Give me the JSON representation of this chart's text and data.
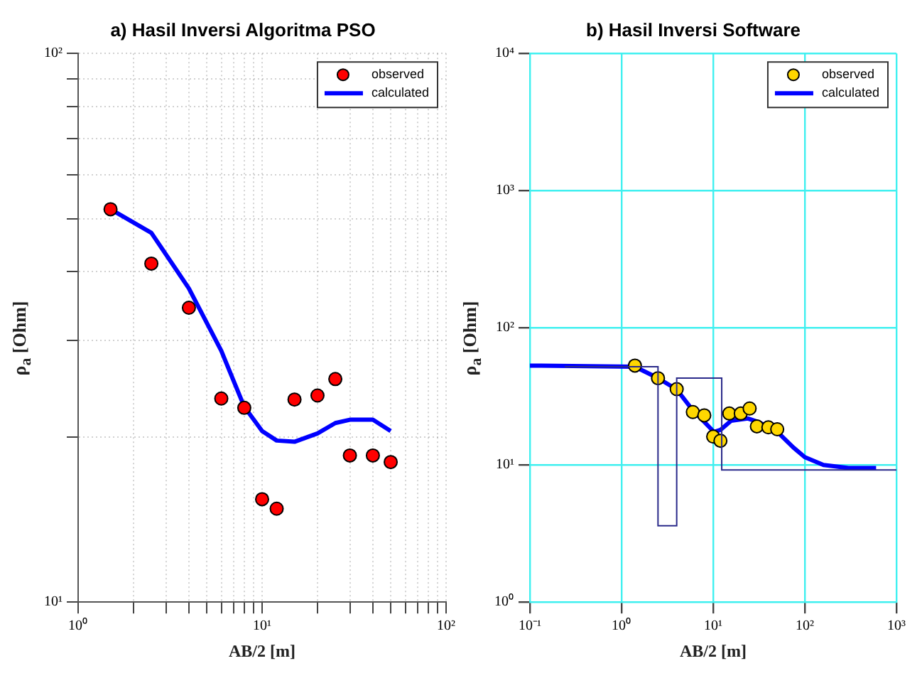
{
  "chart_data": [
    {
      "type": "scatter",
      "title": "a) Hasil Inversi Algoritma PSO",
      "xlabel": "AB/2 [m]",
      "ylabel": "ρ$_{a}$ [Ohm]",
      "log": "xy",
      "grid": true,
      "legend": "top right",
      "xlim": [
        1,
        100
      ],
      "xticks": [
        {
          "value": 1,
          "label": "10⁰"
        },
        {
          "value": 2,
          "label": null
        },
        {
          "value": 3,
          "label": null
        },
        {
          "value": 4,
          "label": null
        },
        {
          "value": 5,
          "label": null
        },
        {
          "value": 6,
          "label": null
        },
        {
          "value": 7,
          "label": null
        },
        {
          "value": 8,
          "label": null
        },
        {
          "value": 9,
          "label": null
        },
        {
          "value": 10,
          "label": "10¹"
        },
        {
          "value": 20,
          "label": null
        },
        {
          "value": 30,
          "label": null
        },
        {
          "value": 40,
          "label": null
        },
        {
          "value": 50,
          "label": null
        },
        {
          "value": 60,
          "label": null
        },
        {
          "value": 70,
          "label": null
        },
        {
          "value": 80,
          "label": null
        },
        {
          "value": 90,
          "label": null
        },
        {
          "value": 100,
          "label": "10²"
        }
      ],
      "ylim": [
        10,
        100
      ],
      "yticks": [
        {
          "value": 10,
          "label": "10¹"
        },
        {
          "value": 20,
          "label": null
        },
        {
          "value": 30,
          "label": null
        },
        {
          "value": 40,
          "label": null
        },
        {
          "value": 50,
          "label": null
        },
        {
          "value": 60,
          "label": null
        },
        {
          "value": 70,
          "label": null
        },
        {
          "value": 80,
          "label": null
        },
        {
          "value": 90,
          "label": null
        },
        {
          "value": 100,
          "label": "10²"
        }
      ],
      "series": [
        {
          "name": "observed",
          "type": "scatter",
          "marker": "circle",
          "color": "#ff0000",
          "x": [
            1.5,
            2.5,
            4,
            6,
            8,
            10,
            12,
            15,
            20,
            25,
            30,
            40,
            50
          ],
          "values": [
            52,
            41.4,
            34.4,
            23.5,
            22.6,
            15.4,
            14.8,
            23.4,
            23.8,
            25.5,
            18.5,
            18.5,
            18
          ]
        },
        {
          "name": "calculated",
          "type": "line",
          "color": "#0000ff",
          "x": [
            1.5,
            2.5,
            4,
            6,
            8,
            10,
            12,
            15,
            20,
            25,
            30,
            40,
            50
          ],
          "values": [
            52,
            47.1,
            37.3,
            28.7,
            22.7,
            20.5,
            19.7,
            19.6,
            20.3,
            21.2,
            21.5,
            21.5,
            20.5
          ]
        }
      ]
    },
    {
      "type": "scatter",
      "title": "b) Hasil Inversi Software",
      "xlabel": "AB/2 [m]",
      "ylabel": "ρ$_{a}$ [Ohm]",
      "log": "xy",
      "grid": true,
      "legend": "top right",
      "xlim": [
        0.1,
        1000
      ],
      "xticks": [
        {
          "value": 0.1,
          "label": "10⁻¹"
        },
        {
          "value": 1,
          "label": "10⁰"
        },
        {
          "value": 10,
          "label": "10¹"
        },
        {
          "value": 100,
          "label": "10²"
        },
        {
          "value": 1000,
          "label": "10³"
        }
      ],
      "ylim": [
        1,
        10000
      ],
      "yticks": [
        {
          "value": 1,
          "label": "10⁰"
        },
        {
          "value": 10,
          "label": "10¹"
        },
        {
          "value": 100,
          "label": "10²"
        },
        {
          "value": 1000,
          "label": "10³"
        },
        {
          "value": 10000,
          "label": "10⁴"
        }
      ],
      "series": [
        {
          "type": "step",
          "color": "#2a2a8a",
          "x": [
            0.24,
            2.5,
            4,
            12.4,
            1000
          ],
          "values": [
            52,
            3.6,
            43,
            9.2,
            9.2
          ]
        },
        {
          "name": "observed",
          "type": "scatter",
          "marker": "circle",
          "color": "#ffd700",
          "x": [
            1.4,
            2.5,
            4,
            6,
            8,
            10,
            12,
            15,
            20,
            25,
            30,
            40,
            50
          ],
          "values": [
            53,
            42.9,
            35.7,
            24.3,
            23,
            16.1,
            15,
            23.7,
            23.7,
            25.8,
            19.1,
            18.8,
            18.2
          ]
        },
        {
          "name": "calculated",
          "type": "line",
          "color": "#0000ff",
          "x": [
            0.1,
            1.4,
            2.5,
            4,
            6,
            8,
            10.2,
            12,
            15.7,
            24,
            32,
            52,
            75,
            100,
            160,
            300,
            600
          ],
          "values": [
            53,
            52,
            43,
            35.5,
            25,
            20.6,
            17.4,
            18,
            21,
            21.8,
            20.4,
            17,
            13.4,
            11.4,
            10,
            9.5,
            9.5
          ]
        }
      ]
    }
  ]
}
